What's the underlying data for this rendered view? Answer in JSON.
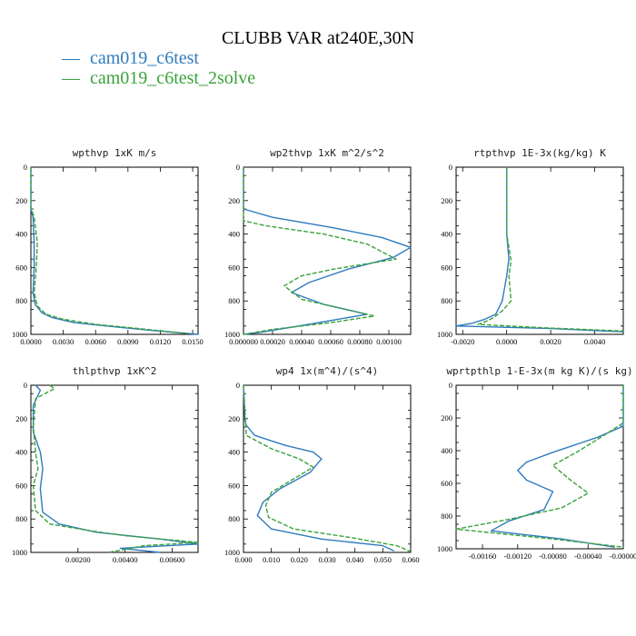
{
  "header": {
    "title": "CLUBB VAR at240E,30N",
    "legend": [
      {
        "marker": "—",
        "label": "cam019_c6test",
        "color": "#2f7bbd"
      },
      {
        "marker": "—",
        "label": "cam019_c6test_2solve",
        "color": "#3aa23a"
      }
    ]
  },
  "chart_data": [
    {
      "type": "line",
      "title": "wpthvp  1xK m/s",
      "xlim": [
        0,
        0.0155
      ],
      "ylim": [
        1000,
        0
      ],
      "xticks": [
        0,
        0.003,
        0.006,
        0.009,
        0.012,
        0.015
      ],
      "xtick_labels": [
        "0.0000",
        "0.0030",
        "0.0060",
        "0.0090",
        "0.0120",
        "0.0150"
      ],
      "yticks": [
        0,
        200,
        400,
        600,
        800,
        1000
      ],
      "ytick_labels": [
        "0",
        "200",
        "400",
        "600",
        "800",
        "1000"
      ],
      "series": [
        {
          "name": "cam019_c6test",
          "color": "#2f7bbd",
          "dash": "solid",
          "points": [
            [
              0,
              0
            ],
            [
              0,
              250
            ],
            [
              0.0002,
              300
            ],
            [
              0.0003,
              450
            ],
            [
              0.0003,
              600
            ],
            [
              0.0002,
              750
            ],
            [
              0.0004,
              820
            ],
            [
              0.001,
              870
            ],
            [
              0.002,
              900
            ],
            [
              0.004,
              930
            ],
            [
              0.007,
              950
            ],
            [
              0.011,
              975
            ],
            [
              0.0155,
              1000
            ]
          ]
        },
        {
          "name": "cam019_c6test_2solve",
          "color": "#3aa23a",
          "dash": "dashed",
          "points": [
            [
              0,
              0
            ],
            [
              0,
              240
            ],
            [
              0.0003,
              300
            ],
            [
              0.0006,
              450
            ],
            [
              0.0005,
              600
            ],
            [
              0.0003,
              750
            ],
            [
              0.0006,
              830
            ],
            [
              0.0014,
              880
            ],
            [
              0.003,
              910
            ],
            [
              0.006,
              940
            ],
            [
              0.01,
              965
            ],
            [
              0.0145,
              995
            ]
          ]
        }
      ]
    },
    {
      "type": "line",
      "title": "wp2thvp  1xK m^2/s^2",
      "xlim": [
        0,
        0.00115
      ],
      "ylim": [
        1000,
        0
      ],
      "xticks": [
        0,
        0.0002,
        0.0004,
        0.0006,
        0.0008,
        0.001
      ],
      "xtick_labels": [
        "0.000000",
        "0.00020",
        "0.00040",
        "0.00060",
        "0.00080",
        "0.00100"
      ],
      "yticks": [
        0,
        200,
        400,
        600,
        800,
        1000
      ],
      "ytick_labels": [
        "0",
        "200",
        "400",
        "600",
        "800",
        "1000"
      ],
      "series": [
        {
          "name": "cam019_c6test",
          "color": "#2f7bbd",
          "dash": "solid",
          "points": [
            [
              0,
              0
            ],
            [
              0,
              250
            ],
            [
              0.0002,
              300
            ],
            [
              0.0006,
              360
            ],
            [
              0.00095,
              420
            ],
            [
              0.00115,
              480
            ],
            [
              0.00103,
              540
            ],
            [
              0.00072,
              610
            ],
            [
              0.00045,
              690
            ],
            [
              0.00033,
              750
            ],
            [
              0.00055,
              820
            ],
            [
              0.00085,
              880
            ],
            [
              0.00045,
              940
            ],
            [
              0.0001,
              990
            ],
            [
              0,
              1000
            ]
          ]
        },
        {
          "name": "cam019_c6test_2solve",
          "color": "#3aa23a",
          "dash": "dashed",
          "points": [
            [
              0,
              0
            ],
            [
              0,
              320
            ],
            [
              0.00015,
              350
            ],
            [
              0.00055,
              400
            ],
            [
              0.00085,
              460
            ],
            [
              0.00105,
              550
            ],
            [
              0.00062,
              610
            ],
            [
              0.0004,
              650
            ],
            [
              0.00028,
              710
            ],
            [
              0.0004,
              790
            ],
            [
              0.0007,
              850
            ],
            [
              0.0009,
              890
            ],
            [
              0.0006,
              930
            ],
            [
              0.0002,
              970
            ],
            [
              0,
              1000
            ]
          ]
        }
      ]
    },
    {
      "type": "line",
      "title": "rtpthvp  1E-3x(kg/kg) K",
      "xlim": [
        -0.0023,
        0.0053
      ],
      "ylim": [
        1000,
        0
      ],
      "xticks": [
        -0.002,
        0,
        0.002,
        0.004
      ],
      "xtick_labels": [
        "-0.0020",
        "0.0000",
        "0.0020",
        "0.0040"
      ],
      "yticks": [
        0,
        200,
        400,
        600,
        800,
        1000
      ],
      "ytick_labels": [
        "0",
        "200",
        "400",
        "600",
        "800",
        "1000"
      ],
      "series": [
        {
          "name": "cam019_c6test",
          "color": "#2f7bbd",
          "dash": "solid",
          "points": [
            [
              0,
              0
            ],
            [
              0,
              400
            ],
            [
              0.0001,
              550
            ],
            [
              0,
              650
            ],
            [
              -0.0002,
              800
            ],
            [
              -0.0005,
              880
            ],
            [
              -0.001,
              910
            ],
            [
              -0.0016,
              935
            ],
            [
              -0.0023,
              950
            ],
            [
              0.002,
              965
            ],
            [
              0.0053,
              985
            ]
          ]
        },
        {
          "name": "cam019_c6test_2solve",
          "color": "#3aa23a",
          "dash": "dashed",
          "points": [
            [
              0,
              0
            ],
            [
              0,
              400
            ],
            [
              0.0002,
              560
            ],
            [
              0.0001,
              650
            ],
            [
              0.0002,
              800
            ],
            [
              -0.0002,
              860
            ],
            [
              -0.0006,
              900
            ],
            [
              -0.0009,
              920
            ],
            [
              -0.0013,
              940
            ],
            [
              0.0015,
              960
            ],
            [
              0.0053,
              980
            ]
          ]
        }
      ]
    },
    {
      "type": "line",
      "title": "thlpthvp  1xK^2",
      "xlim": [
        0,
        0.0071
      ],
      "ylim": [
        1000,
        0
      ],
      "xticks": [
        0.002,
        0.004,
        0.006
      ],
      "xtick_labels": [
        "0.00200",
        "0.00400",
        "0.00600"
      ],
      "yticks": [
        0,
        200,
        400,
        600,
        800,
        1000
      ],
      "ytick_labels": [
        "0",
        "200",
        "400",
        "600",
        "800",
        "1000"
      ],
      "series": [
        {
          "name": "cam019_c6test",
          "color": "#2f7bbd",
          "dash": "solid",
          "points": [
            [
              0.0002,
              0
            ],
            [
              0.0004,
              30
            ],
            [
              0.0001,
              120
            ],
            [
              0.0001,
              280
            ],
            [
              0.0004,
              400
            ],
            [
              0.0005,
              500
            ],
            [
              0.0004,
              620
            ],
            [
              0.0005,
              760
            ],
            [
              0.0012,
              830
            ],
            [
              0.0028,
              880
            ],
            [
              0.0055,
              920
            ],
            [
              0.0071,
              950
            ],
            [
              0.0038,
              975
            ],
            [
              0.0055,
              1000
            ]
          ]
        },
        {
          "name": "cam019_c6test_2solve",
          "color": "#3aa23a",
          "dash": "dashed",
          "points": [
            [
              0.0008,
              0
            ],
            [
              0.001,
              20
            ],
            [
              0.0002,
              80
            ],
            [
              0.0001,
              250
            ],
            [
              0.0002,
              400
            ],
            [
              0.0003,
              500
            ],
            [
              0.0001,
              600
            ],
            [
              0.0002,
              750
            ],
            [
              0.0008,
              830
            ],
            [
              0.0025,
              870
            ],
            [
              0.004,
              900
            ],
            [
              0.0071,
              940
            ],
            [
              0.0048,
              960
            ],
            [
              0.0033,
              1000
            ]
          ]
        }
      ]
    },
    {
      "type": "line",
      "title": "wp4  1x(m^4)/(s^4)",
      "xlim": [
        0,
        0.06
      ],
      "ylim": [
        1000,
        0
      ],
      "xticks": [
        0,
        0.01,
        0.02,
        0.03,
        0.04,
        0.05,
        0.06
      ],
      "xtick_labels": [
        "0.000",
        "0.010",
        "0.020",
        "0.030",
        "0.040",
        "0.050",
        "0.060"
      ],
      "yticks": [
        0,
        200,
        400,
        600,
        800,
        1000
      ],
      "ytick_labels": [
        "0",
        "200",
        "400",
        "600",
        "800",
        "1000"
      ],
      "series": [
        {
          "name": "cam019_c6test",
          "color": "#2f7bbd",
          "dash": "solid",
          "points": [
            [
              0,
              0
            ],
            [
              0.0005,
              210
            ],
            [
              0.001,
              240
            ],
            [
              0.004,
              300
            ],
            [
              0.015,
              360
            ],
            [
              0.025,
              400
            ],
            [
              0.028,
              440
            ],
            [
              0.024,
              520
            ],
            [
              0.013,
              620
            ],
            [
              0.007,
              700
            ],
            [
              0.005,
              780
            ],
            [
              0.01,
              860
            ],
            [
              0.028,
              920
            ],
            [
              0.05,
              960
            ],
            [
              0.054,
              990
            ]
          ]
        },
        {
          "name": "cam019_c6test_2solve",
          "color": "#3aa23a",
          "dash": "dashed",
          "points": [
            [
              0,
              0
            ],
            [
              0.001,
              300
            ],
            [
              0.01,
              380
            ],
            [
              0.02,
              440
            ],
            [
              0.025,
              490
            ],
            [
              0.018,
              560
            ],
            [
              0.01,
              640
            ],
            [
              0.008,
              720
            ],
            [
              0.009,
              790
            ],
            [
              0.018,
              860
            ],
            [
              0.038,
              910
            ],
            [
              0.055,
              960
            ],
            [
              0.06,
              995
            ]
          ]
        }
      ]
    },
    {
      "type": "line",
      "title": "wprtpthlp  1-E-3x(m kg K)/(s kg)",
      "xlim": [
        -0.0019,
        0.0
      ],
      "ylim": [
        1000,
        0
      ],
      "xticks": [
        -0.0016,
        -0.0012,
        -0.0008,
        -0.0004,
        0.0
      ],
      "xtick_labels": [
        "-0.00160",
        "-0.00120",
        "-0.00080",
        "-0.00040",
        "-0.00000"
      ],
      "yticks": [
        0,
        200,
        400,
        600,
        800,
        1000
      ],
      "ytick_labels": [
        "0",
        "200",
        "400",
        "600",
        "800",
        "1000"
      ],
      "series": [
        {
          "name": "cam019_c6test",
          "color": "#2f7bbd",
          "dash": "solid",
          "points": [
            [
              0,
              0
            ],
            [
              0,
              250
            ],
            [
              -0.0003,
              320
            ],
            [
              -0.0008,
              410
            ],
            [
              -0.0011,
              470
            ],
            [
              -0.0012,
              520
            ],
            [
              -0.0011,
              580
            ],
            [
              -0.0008,
              650
            ],
            [
              -0.0009,
              760
            ],
            [
              -0.0013,
              830
            ],
            [
              -0.0015,
              890
            ],
            [
              -0.0007,
              940
            ],
            [
              -0.0001,
              990
            ]
          ]
        },
        {
          "name": "cam019_c6test_2solve",
          "color": "#3aa23a",
          "dash": "dashed",
          "points": [
            [
              0,
              0
            ],
            [
              0,
              230
            ],
            [
              -0.0002,
              300
            ],
            [
              -0.0005,
              400
            ],
            [
              -0.0008,
              490
            ],
            [
              -0.0006,
              580
            ],
            [
              -0.0004,
              660
            ],
            [
              -0.0007,
              750
            ],
            [
              -0.0013,
              820
            ],
            [
              -0.0019,
              880
            ],
            [
              -0.0008,
              940
            ],
            [
              0,
              990
            ]
          ]
        }
      ]
    }
  ]
}
